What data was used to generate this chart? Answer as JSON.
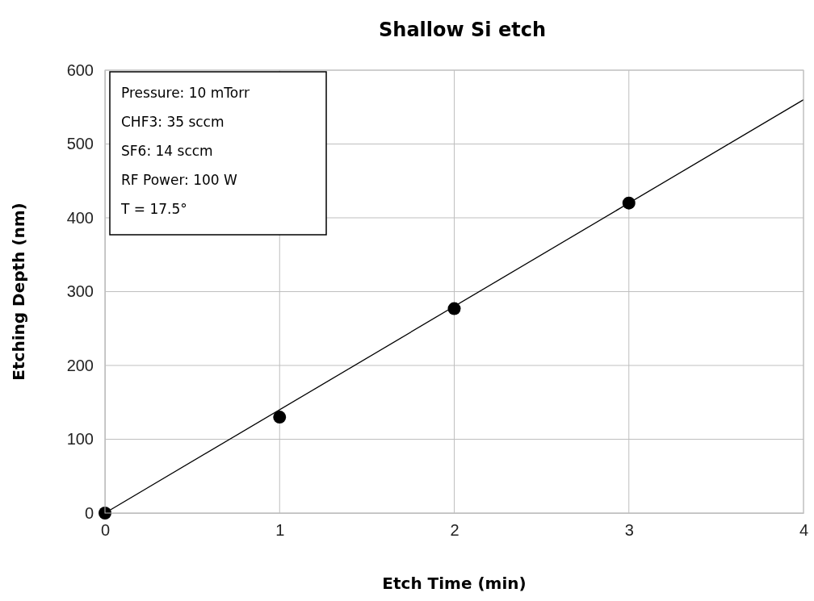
{
  "chart_data": {
    "type": "scatter",
    "title": "Shallow Si etch",
    "xlabel": "Etch Time (min)",
    "ylabel": "Etching Depth (nm)",
    "xlim": [
      0,
      4
    ],
    "xticks": [
      0,
      1,
      2,
      3,
      4
    ],
    "ylim": [
      0,
      600
    ],
    "yticks": [
      0,
      100,
      200,
      300,
      400,
      500,
      600
    ],
    "grid": true,
    "marker": "circle",
    "series": [
      {
        "color": "#000000",
        "x": [
          0,
          1,
          2,
          3
        ],
        "values": [
          0,
          130,
          277,
          420
        ]
      },
      {
        "type": "line",
        "color": "#000000",
        "line_style": "solid",
        "marker": "none",
        "x": [
          0,
          4
        ],
        "values": [
          0,
          560
        ]
      }
    ],
    "annotations": [
      "Pressure: 10 mTorr",
      "CHF3: 35 sccm",
      "SF6: 14 sccm",
      "RF Power: 100 W",
      "T = 17.5°"
    ]
  }
}
